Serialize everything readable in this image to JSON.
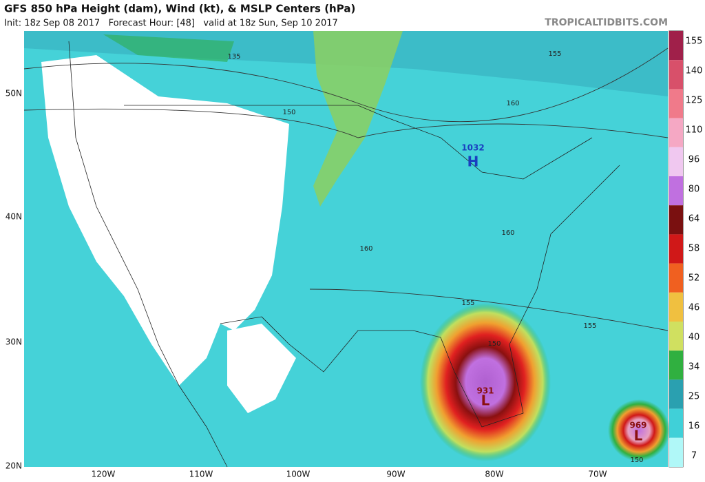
{
  "header": {
    "title": "GFS 850 hPa Height (dam), Wind (kt), & MSLP Centers (hPa)",
    "subtitle": "Init: 18z Sep 08 2017   Forecast Hour: [48]   valid at 18z Sun, Sep 10 2017",
    "site": "TROPICALTIDBITS.COM"
  },
  "colorbar": {
    "levels": [
      {
        "label": 155,
        "color": "#a0204a"
      },
      {
        "label": 140,
        "color": "#d8506a"
      },
      {
        "label": 125,
        "color": "#f07a8a"
      },
      {
        "label": 110,
        "color": "#f5a8c4"
      },
      {
        "label": 96,
        "color": "#f0c8f0"
      },
      {
        "label": 80,
        "color": "#c070e0"
      },
      {
        "label": 64,
        "color": "#7a1010"
      },
      {
        "label": 58,
        "color": "#d01818"
      },
      {
        "label": 52,
        "color": "#f06020"
      },
      {
        "label": 46,
        "color": "#f0c040"
      },
      {
        "label": 40,
        "color": "#d0e060"
      },
      {
        "label": 34,
        "color": "#30b040"
      },
      {
        "label": 25,
        "color": "#2aa0b0"
      },
      {
        "label": 16,
        "color": "#40d0d8"
      },
      {
        "label": 7,
        "color": "#b0f8f8"
      }
    ]
  },
  "lat_labels": [
    "50N",
    "40N",
    "30N",
    "20N"
  ],
  "lon_labels": [
    "120W",
    "110W",
    "100W",
    "90W",
    "80W",
    "70W"
  ],
  "contour_labels": [
    "155",
    "150",
    "160",
    "160",
    "160",
    "155",
    "155",
    "150",
    "150",
    "135"
  ],
  "centers": [
    {
      "pressure": "1032",
      "symbol": "H"
    },
    {
      "pressure": "931",
      "symbol": "L"
    },
    {
      "pressure": "969",
      "symbol": "L"
    }
  ]
}
